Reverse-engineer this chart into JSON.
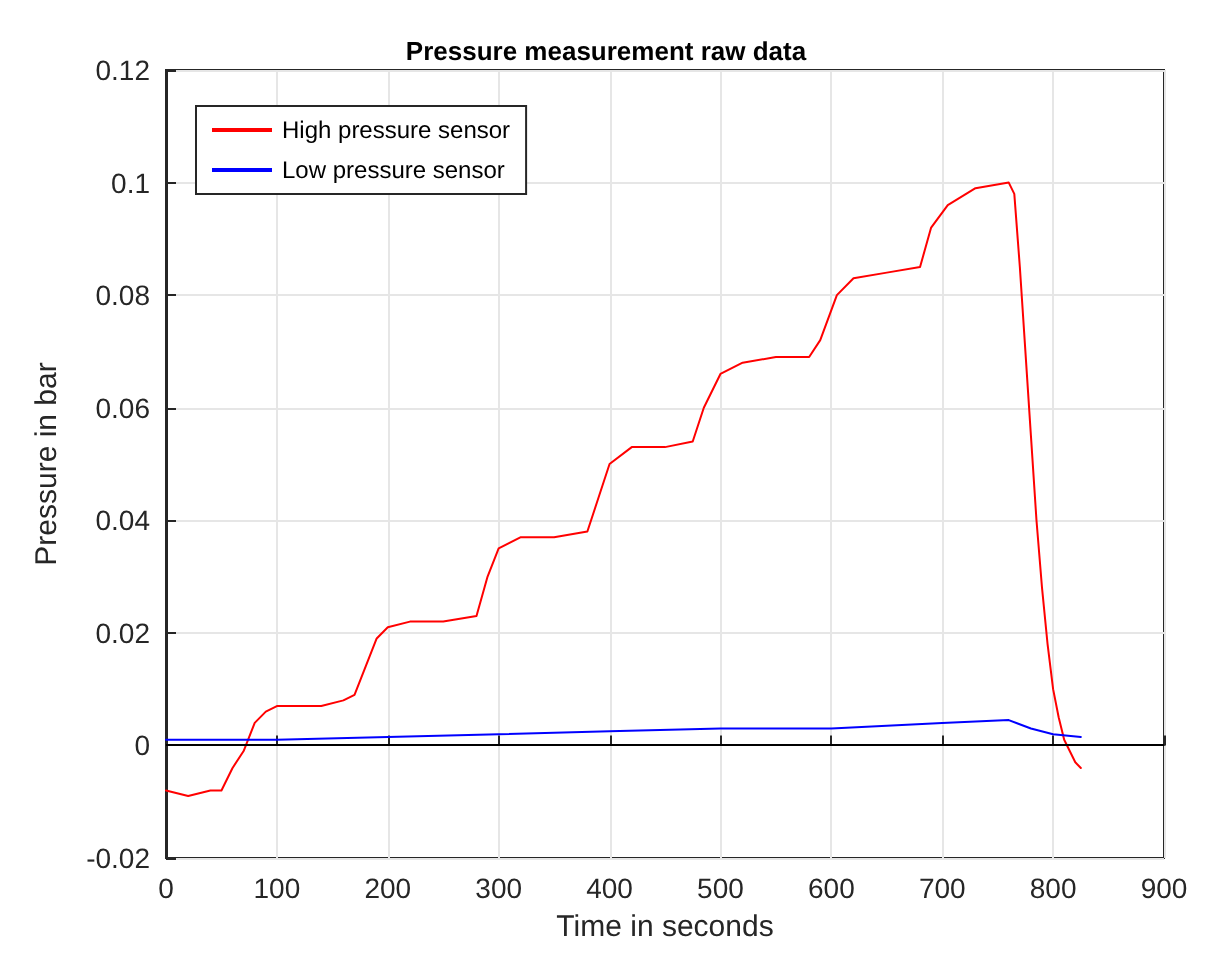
{
  "chart_data": {
    "type": "line",
    "title": "Pressure measurement raw data",
    "xlabel": "Time in seconds",
    "ylabel": "Pressure in bar",
    "xlim": [
      0,
      900
    ],
    "xticks": [
      0,
      100,
      200,
      300,
      400,
      500,
      600,
      700,
      800,
      900
    ],
    "ylim": [
      -0.02,
      0.12
    ],
    "yticks": [
      -0.02,
      0,
      0.02,
      0.04,
      0.06,
      0.08,
      0.1,
      0.12
    ],
    "grid": true,
    "legend": "top left",
    "marker": "none",
    "line_style": "solid",
    "ref_lines": [
      {
        "axis": "y",
        "value": 0,
        "color": "#000000"
      }
    ],
    "series": [
      {
        "name": "High pressure sensor",
        "color": "#ff0000",
        "x": [
          0,
          20,
          40,
          50,
          60,
          70,
          80,
          90,
          100,
          120,
          140,
          160,
          170,
          180,
          190,
          200,
          220,
          250,
          280,
          290,
          300,
          320,
          350,
          380,
          390,
          400,
          420,
          450,
          475,
          485,
          500,
          520,
          550,
          580,
          590,
          605,
          620,
          650,
          680,
          690,
          705,
          730,
          760,
          765,
          770,
          775,
          780,
          785,
          790,
          795,
          800,
          805,
          810,
          820,
          825
        ],
        "values": [
          -0.008,
          -0.009,
          -0.008,
          -0.008,
          -0.004,
          -0.001,
          0.004,
          0.006,
          0.007,
          0.007,
          0.007,
          0.008,
          0.009,
          0.014,
          0.019,
          0.021,
          0.022,
          0.022,
          0.023,
          0.03,
          0.035,
          0.037,
          0.037,
          0.038,
          0.044,
          0.05,
          0.053,
          0.053,
          0.054,
          0.06,
          0.066,
          0.068,
          0.069,
          0.069,
          0.072,
          0.08,
          0.083,
          0.084,
          0.085,
          0.092,
          0.096,
          0.099,
          0.1,
          0.098,
          0.085,
          0.07,
          0.055,
          0.04,
          0.028,
          0.018,
          0.01,
          0.005,
          0.001,
          -0.003,
          -0.004
        ]
      },
      {
        "name": "Low pressure sensor",
        "color": "#0000ff",
        "x": [
          0,
          100,
          200,
          300,
          400,
          500,
          600,
          700,
          760,
          780,
          800,
          825
        ],
        "values": [
          0.001,
          0.001,
          0.0015,
          0.002,
          0.0025,
          0.003,
          0.003,
          0.004,
          0.0045,
          0.003,
          0.002,
          0.0015
        ]
      }
    ]
  }
}
